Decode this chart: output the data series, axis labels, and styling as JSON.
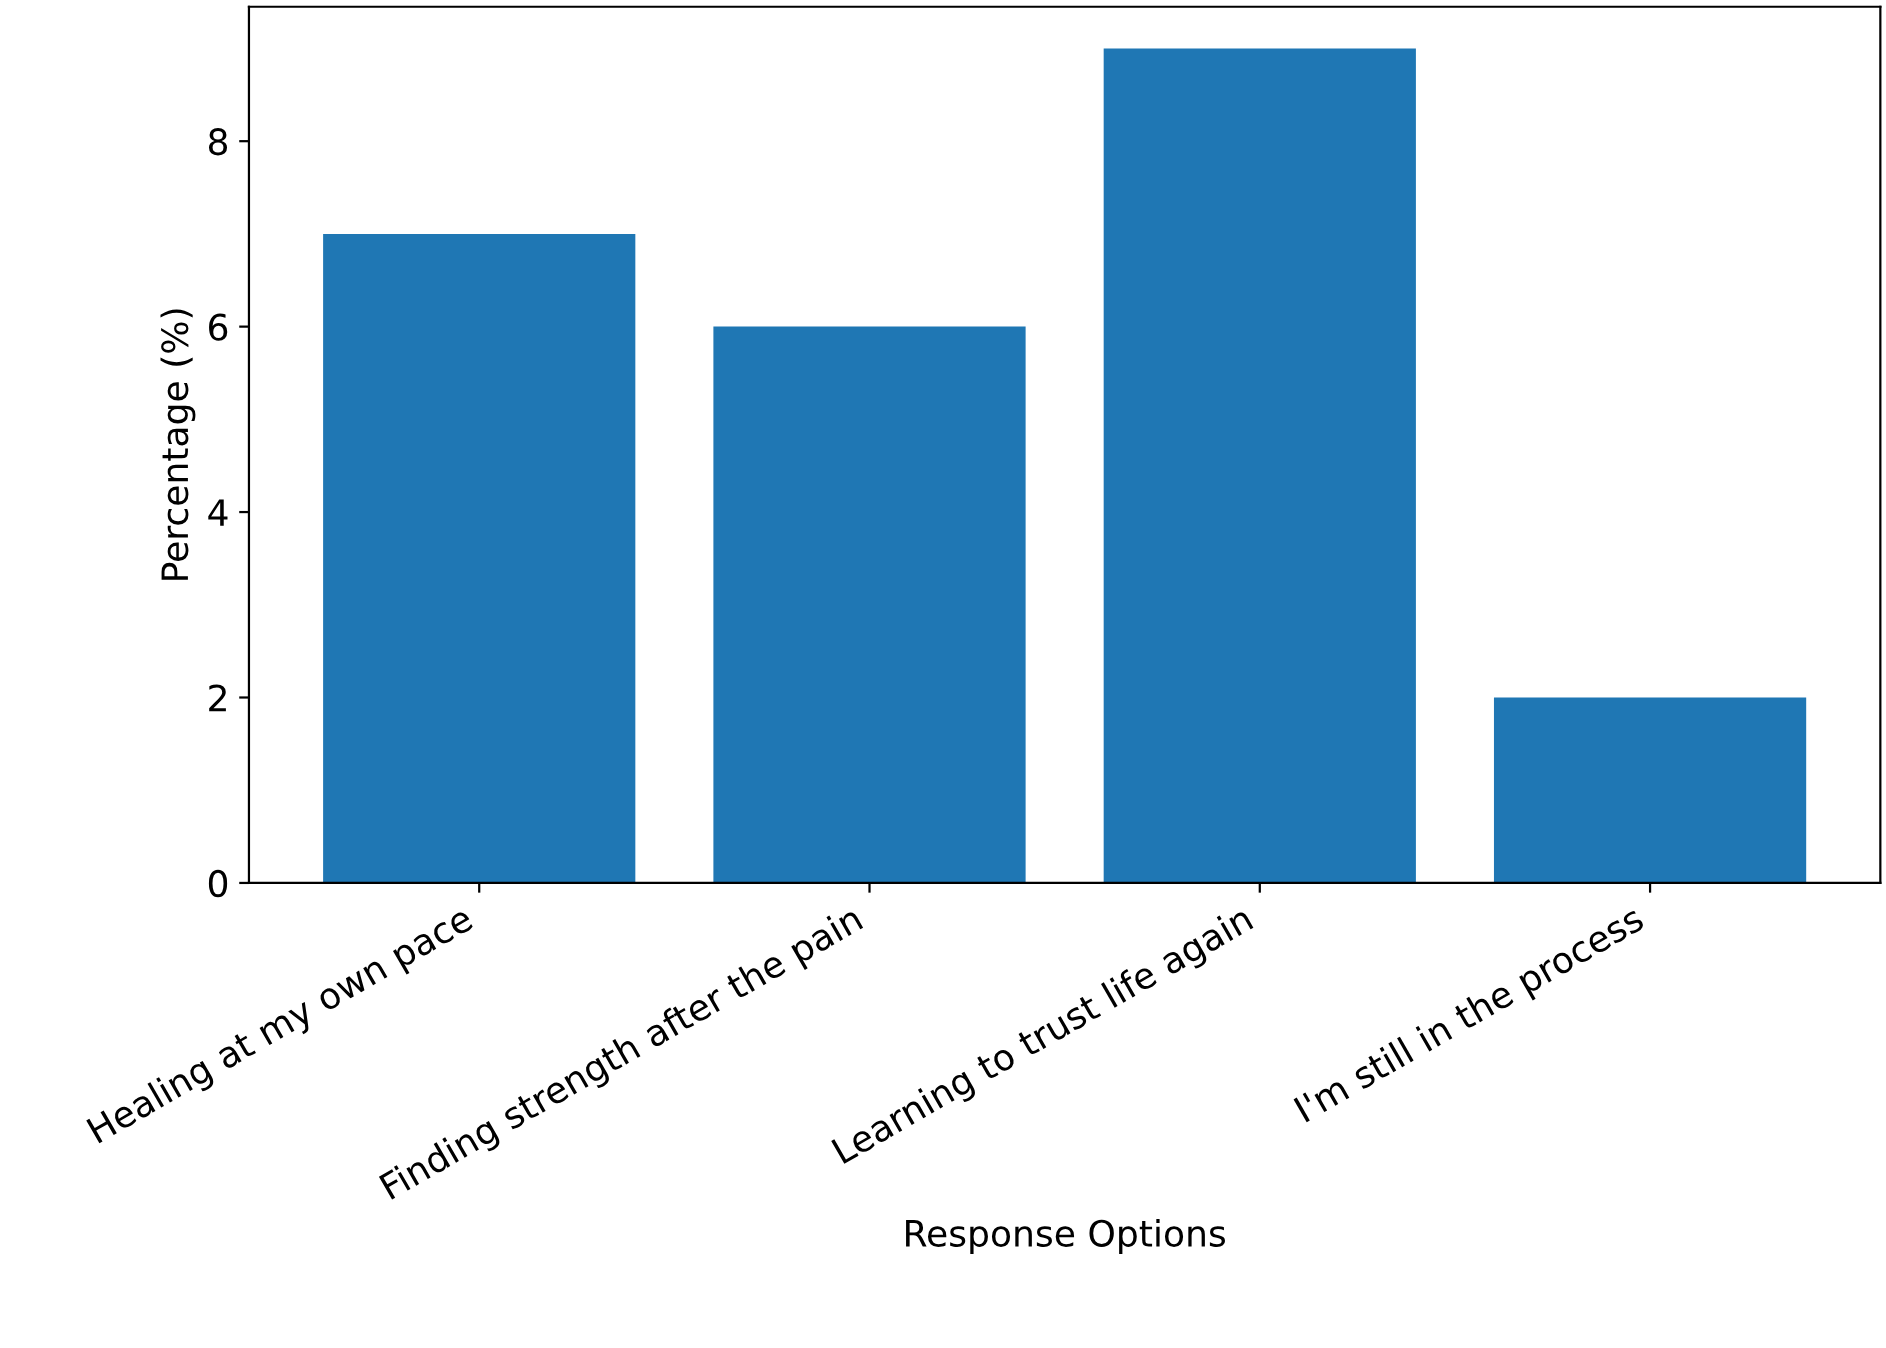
{
  "chart_data": {
    "type": "bar",
    "xlabel": "Response Options",
    "ylabel": "Percentage (%)",
    "categories": [
      "Healing at my own pace",
      "Finding strength after the pain",
      "Learning to trust life again",
      "I'm still in the process"
    ],
    "values": [
      7,
      6,
      9,
      2
    ],
    "color": "#1f77b4",
    "ylim": [
      0,
      9.45
    ],
    "yticks": [
      0,
      2,
      4,
      6,
      8
    ],
    "grid": false
  }
}
